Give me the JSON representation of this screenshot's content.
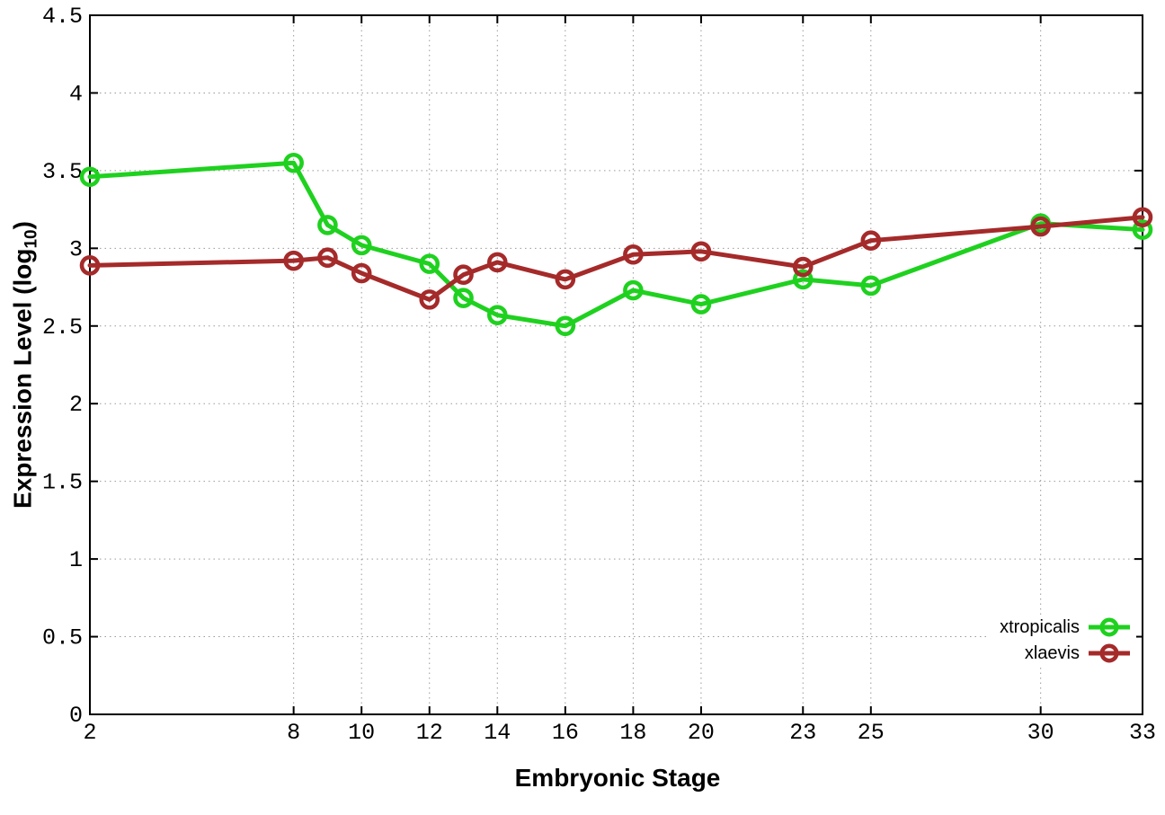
{
  "chart_data": {
    "type": "line",
    "title": "",
    "xlabel": "Embryonic Stage",
    "ylabel": "Expression Level (log10)",
    "ylabel_parts": {
      "main": "Expression Level (log",
      "sub": "10",
      "suffix": ")"
    },
    "x": [
      2,
      8,
      9,
      10,
      12,
      13,
      14,
      16,
      18,
      20,
      23,
      25,
      30,
      33
    ],
    "series": [
      {
        "name": "xtropicalis",
        "color": "#1fd11f",
        "values": [
          3.46,
          3.55,
          3.15,
          3.02,
          2.9,
          2.68,
          2.57,
          2.5,
          2.73,
          2.64,
          2.8,
          2.76,
          3.16,
          3.12
        ]
      },
      {
        "name": "xlaevis",
        "color": "#a52a2a",
        "values": [
          2.89,
          2.92,
          2.94,
          2.84,
          2.67,
          2.83,
          2.91,
          2.8,
          2.96,
          2.98,
          2.88,
          3.05,
          3.14,
          3.2
        ]
      }
    ],
    "x_ticks": [
      "2",
      "8",
      "10",
      "12",
      "14",
      "16",
      "18",
      "20",
      "23",
      "25",
      "30",
      "33"
    ],
    "y_ticks": [
      "0",
      "0.5",
      "1",
      "1.5",
      "2",
      "2.5",
      "3",
      "3.5",
      "4",
      "4.5"
    ],
    "xlim": [
      2,
      33
    ],
    "ylim": [
      0,
      4.5
    ],
    "grid": true,
    "legend_position": "bottom-right",
    "colors": {
      "background": "#ffffff",
      "border": "#000000",
      "grid": "#999999",
      "text": "#000000"
    }
  }
}
